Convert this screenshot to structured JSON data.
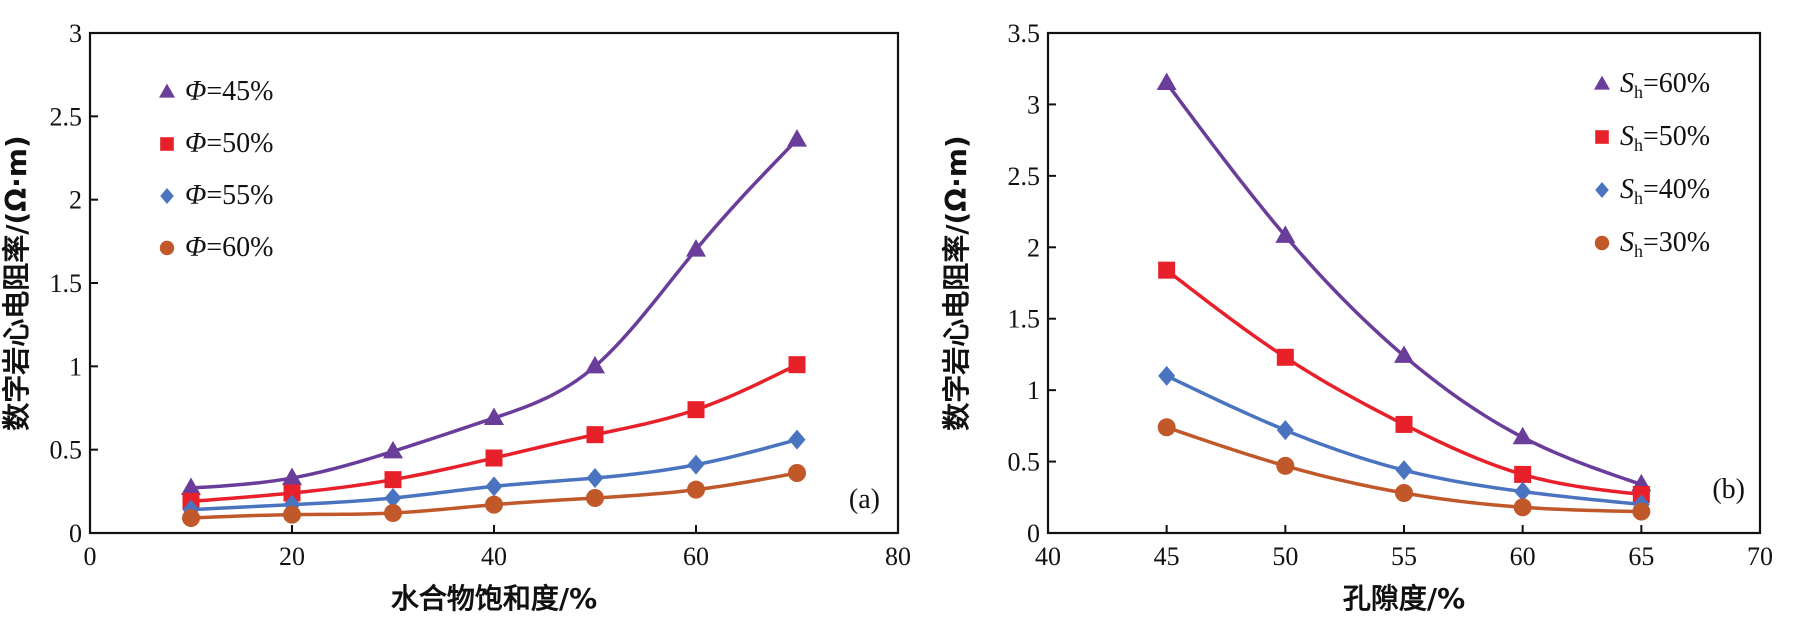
{
  "chart_data": [
    {
      "type": "scatter",
      "panel_label": "(a)",
      "xlabel": "水合物饱和度/%",
      "ylabel": "数字岩心电阻率/(Ω·m)",
      "xlim": [
        0,
        80
      ],
      "ylim": [
        0,
        3
      ],
      "xticks": [
        "0",
        "20",
        "40",
        "60",
        "80"
      ],
      "yticks": [
        "0",
        "0.5",
        "1",
        "1.5",
        "2",
        "2.5",
        "3"
      ],
      "legend_position": "top-left",
      "fit_curves": true,
      "series": [
        {
          "name": "Φ=45%",
          "legend_symbol": "Φ",
          "legend_value": "=45%",
          "marker": "triangle",
          "color": "#6a3d9a",
          "x": [
            10,
            20,
            30,
            40,
            50,
            60,
            70
          ],
          "y": [
            0.27,
            0.33,
            0.49,
            0.69,
            1.0,
            1.7,
            2.36
          ]
        },
        {
          "name": "Φ=50%",
          "legend_symbol": "Φ",
          "legend_value": "=50%",
          "marker": "square",
          "color": "#e8202a",
          "x": [
            10,
            20,
            30,
            40,
            50,
            60,
            70
          ],
          "y": [
            0.19,
            0.24,
            0.32,
            0.45,
            0.59,
            0.74,
            1.01
          ]
        },
        {
          "name": "Φ=55%",
          "legend_symbol": "Φ",
          "legend_value": "=55%",
          "marker": "diamond",
          "color": "#4a73c0",
          "x": [
            10,
            20,
            30,
            40,
            50,
            60,
            70
          ],
          "y": [
            0.14,
            0.17,
            0.21,
            0.28,
            0.33,
            0.41,
            0.56
          ]
        },
        {
          "name": "Φ=60%",
          "legend_symbol": "Φ",
          "legend_value": "=60%",
          "marker": "circle",
          "color": "#c0582a",
          "x": [
            10,
            20,
            30,
            40,
            50,
            60,
            70
          ],
          "y": [
            0.09,
            0.11,
            0.12,
            0.17,
            0.21,
            0.26,
            0.36
          ]
        }
      ]
    },
    {
      "type": "scatter",
      "panel_label": "(b)",
      "xlabel": "孔隙度/%",
      "ylabel": "数字岩心电阻率/(Ω·m)",
      "xlim": [
        40,
        70
      ],
      "ylim": [
        0,
        3.5
      ],
      "xticks": [
        "40",
        "45",
        "50",
        "55",
        "60",
        "65",
        "70"
      ],
      "yticks": [
        "0",
        "0.5",
        "1",
        "1.5",
        "2",
        "2.5",
        "3",
        "3.5"
      ],
      "legend_position": "top-right",
      "fit_curves": true,
      "series": [
        {
          "name": "Sh=60%",
          "legend_symbol": "S",
          "legend_sub": "h",
          "legend_value": "=60%",
          "marker": "triangle",
          "color": "#6a3d9a",
          "x": [
            45,
            50,
            55,
            60,
            65
          ],
          "y": [
            3.15,
            2.08,
            1.24,
            0.67,
            0.34
          ]
        },
        {
          "name": "Sh=50%",
          "legend_symbol": "S",
          "legend_sub": "h",
          "legend_value": "=50%",
          "marker": "square",
          "color": "#e8202a",
          "x": [
            45,
            50,
            55,
            60,
            65
          ],
          "y": [
            1.84,
            1.23,
            0.76,
            0.41,
            0.27
          ]
        },
        {
          "name": "Sh=40%",
          "legend_symbol": "S",
          "legend_sub": "h",
          "legend_value": "=40%",
          "marker": "diamond",
          "color": "#4a73c0",
          "x": [
            45,
            50,
            55,
            60,
            65
          ],
          "y": [
            1.1,
            0.72,
            0.44,
            0.29,
            0.2
          ]
        },
        {
          "name": "Sh=30%",
          "legend_symbol": "S",
          "legend_sub": "h",
          "legend_value": "=30%",
          "marker": "circle",
          "color": "#c0582a",
          "x": [
            45,
            50,
            55,
            60,
            65
          ],
          "y": [
            0.74,
            0.47,
            0.28,
            0.18,
            0.15
          ]
        }
      ]
    }
  ]
}
